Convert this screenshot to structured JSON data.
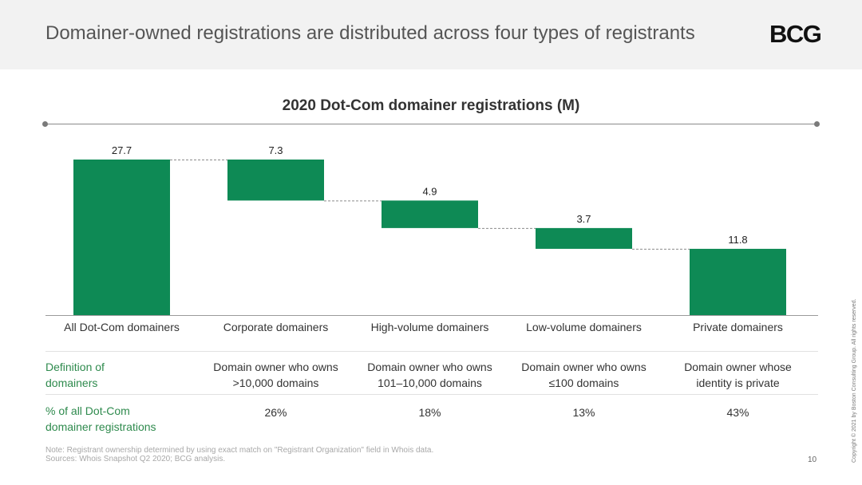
{
  "slide": {
    "title": "Domainer-owned registrations are distributed across four types of registrants",
    "logo": "BCG",
    "page_number": "10",
    "copyright": "Copyright © 2021 by Boston Consulting Group. All rights reserved."
  },
  "chart_data": {
    "type": "bar",
    "subtype": "waterfall",
    "title": "2020 Dot-Com domainer registrations (M)",
    "categories": [
      "All Dot-Com domainers",
      "Corporate domainers",
      "High-volume domainers",
      "Low-volume domainers",
      "Private domainers"
    ],
    "values": [
      27.7,
      7.3,
      4.9,
      3.7,
      11.8
    ],
    "value_labels": [
      "27.7",
      "7.3",
      "4.9",
      "3.7",
      "11.8"
    ],
    "ylim": [
      0,
      27.7
    ],
    "bar_color": "#0e8a55",
    "connector_color": "#8c8c8c",
    "grid": false,
    "legend": "none"
  },
  "table": {
    "rows": [
      {
        "label_lines": [
          "Definition of",
          "domainers"
        ],
        "cells": [
          [
            "Domain owner who owns",
            ">10,000 domains"
          ],
          [
            "Domain owner who owns",
            "101–10,000 domains"
          ],
          [
            "Domain owner who owns",
            "≤100 domains"
          ],
          [
            "Domain owner whose",
            "identity is private"
          ]
        ]
      },
      {
        "label_lines": [
          "% of all Dot-Com",
          "domainer registrations"
        ],
        "cells": [
          [
            "26%"
          ],
          [
            "18%"
          ],
          [
            "13%"
          ],
          [
            "43%"
          ]
        ]
      }
    ]
  },
  "notes": {
    "note": "Note: Registrant ownership determined by using exact match on \"Registrant Organization\" field in Whois data.",
    "sources": "Sources: Whois Snapshot Q2 2020; BCG analysis."
  },
  "colors": {
    "accent_green": "#2e8a4d",
    "bar_green": "#0e8a55"
  }
}
